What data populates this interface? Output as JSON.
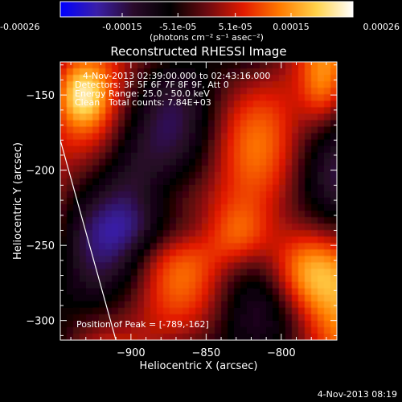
{
  "colorbar": {
    "tick_labels": [
      "-0.00026",
      "-0.00015",
      "-5.1e-05",
      "5.1e-05",
      "0.00015",
      "0.00026"
    ],
    "tick_values": [
      -0.00026,
      -0.00015,
      -5.1e-05,
      5.1e-05,
      0.00015,
      0.00026
    ],
    "range": [
      -0.00026,
      0.00026
    ],
    "units_label": "(photons cm⁻² s⁻¹ asec⁻²)",
    "colors": [
      "#0000ff",
      "#3a1fa8",
      "#2a0a2a",
      "#000000",
      "#6a0a10",
      "#e21a00",
      "#ff7a00",
      "#ffd24a",
      "#ffffff"
    ]
  },
  "chart_data": {
    "type": "heatmap",
    "title": "Reconstructed RHESSI Image",
    "annotations": [
      "4-Nov-2013 02:39:00.000 to 02:43:16.000",
      "Detectors: 3F 5F 6F 7F 8F 9F, Att 0",
      "Energy Range: 25.0 - 50.0 keV",
      "Clean",
      "Total counts: 7.84E+03"
    ],
    "peak_label": "Position of Peak = [-789,-162]",
    "peak_position": [
      -789,
      -162
    ],
    "xlabel": "Heliocentric X (arcsec)",
    "ylabel": "Heliocentric Y (arcsec)",
    "xlim": [
      -947,
      -763
    ],
    "ylim": [
      -313,
      -128
    ],
    "x_ticks": [
      -900,
      -850,
      -800
    ],
    "x_tick_labels": [
      "−900",
      "−850",
      "−800"
    ],
    "y_ticks": [
      -150,
      -200,
      -250,
      -300
    ],
    "y_tick_labels": [
      "−150",
      "−200",
      "−250",
      "−300"
    ],
    "limb_line": [
      [
        -947,
        -180
      ],
      [
        -910,
        -313
      ]
    ]
  },
  "footer": {
    "timestamp": "4-Nov-2013 08:19"
  }
}
